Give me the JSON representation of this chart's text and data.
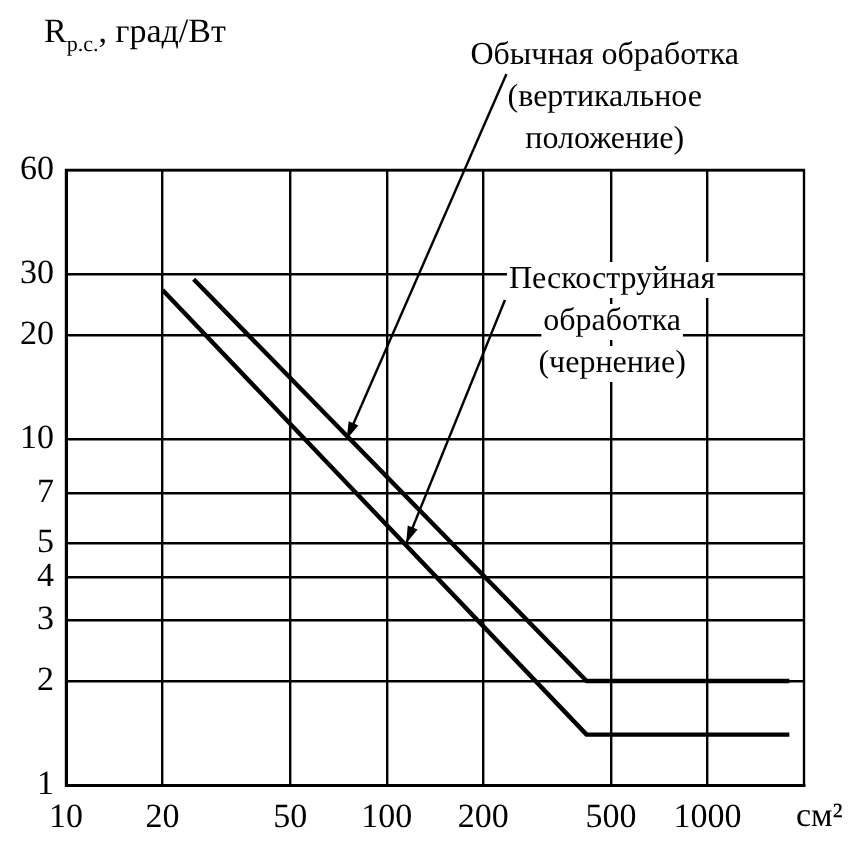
{
  "chart_data": {
    "type": "line",
    "xlabel": "см²",
    "ylabel": "R$_{р.с.}$, град/Вт",
    "log": "xy",
    "grid": true,
    "legend": false,
    "marker": "none",
    "line_style": "solid",
    "xlim": [
      10,
      2000
    ],
    "xticks": [
      10,
      20,
      50,
      100,
      200,
      500,
      1000
    ],
    "ylim": [
      1,
      60
    ],
    "yticks": [
      1,
      2,
      3,
      4,
      5,
      7,
      10,
      20,
      30,
      60
    ],
    "series": [
      {
        "color": "#000000",
        "x": [
          25,
          420,
          1800
        ],
        "values": [
          29,
          2,
          2
        ]
      },
      {
        "color": "#000000",
        "x": [
          20,
          420,
          1800
        ],
        "values": [
          27,
          1.4,
          1.4
        ]
      }
    ],
    "annotations": [
      {
        "text": "Обычная обработка\n(вертикальное\nположение)",
        "x": 75,
        "y": 10
      },
      {
        "text": "Пескоструйная\nобработка\n(чернение)",
        "x": 115,
        "y": 5
      }
    ]
  }
}
